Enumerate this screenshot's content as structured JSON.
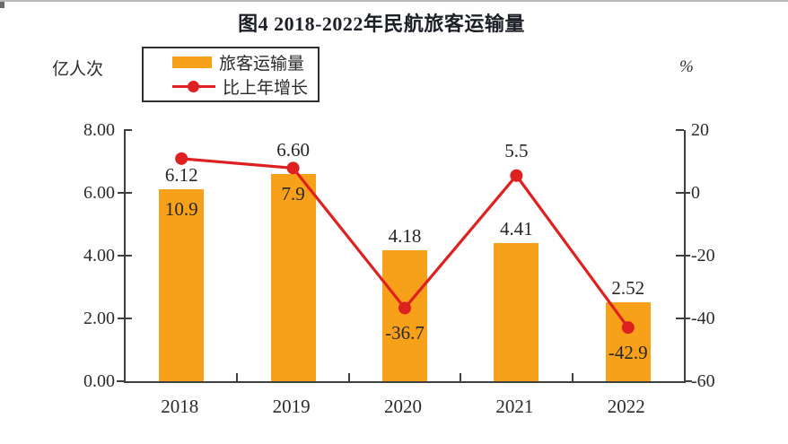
{
  "title": "图4  2018-2022年民航旅客运输量",
  "left_axis": {
    "unit": "亿人次",
    "ticks": [
      "8.00",
      "6.00",
      "4.00",
      "2.00",
      "0.00"
    ]
  },
  "right_axis": {
    "unit": "%",
    "ticks": [
      "20",
      "0",
      "-20",
      "-40",
      "-60"
    ]
  },
  "legend": {
    "bar_label": "旅客运输量",
    "line_label": "比上年增长"
  },
  "colors": {
    "bar": "#F7A11A",
    "line": "#DF2020",
    "axis": "#3F3F3F",
    "text": "#262626",
    "title": "#1C2026"
  },
  "chart_data": {
    "type": "bar",
    "subtype": "bar+line combo, dual axis",
    "title": "图4  2018-2022年民航旅客运输量",
    "categories": [
      "2018",
      "2019",
      "2020",
      "2021",
      "2022"
    ],
    "series": [
      {
        "name": "旅客运输量",
        "type": "bar",
        "axis": "left",
        "unit": "亿人次",
        "values": [
          6.12,
          6.6,
          4.18,
          4.41,
          2.52
        ],
        "labels": [
          "6.12",
          "6.60",
          "4.18",
          "4.41",
          "2.52"
        ]
      },
      {
        "name": "比上年增长",
        "type": "line",
        "axis": "right",
        "unit": "%",
        "values": [
          10.9,
          7.9,
          -36.7,
          5.5,
          -42.9
        ],
        "labels": [
          "10.9",
          "7.9",
          "-36.7",
          "5.5",
          "-42.9"
        ]
      }
    ],
    "left_ylim": [
      0,
      8
    ],
    "right_ylim": [
      -60,
      20
    ],
    "grid": false,
    "legend_position": "top-left",
    "bar_label_positions": [
      "above-bar",
      "above-dot",
      "above-bar",
      "above-bar",
      "above-bar"
    ],
    "growth_label_positions": [
      "inside-bar",
      "inside-bar",
      "below-dot",
      "above-dot",
      "below-dot"
    ]
  }
}
